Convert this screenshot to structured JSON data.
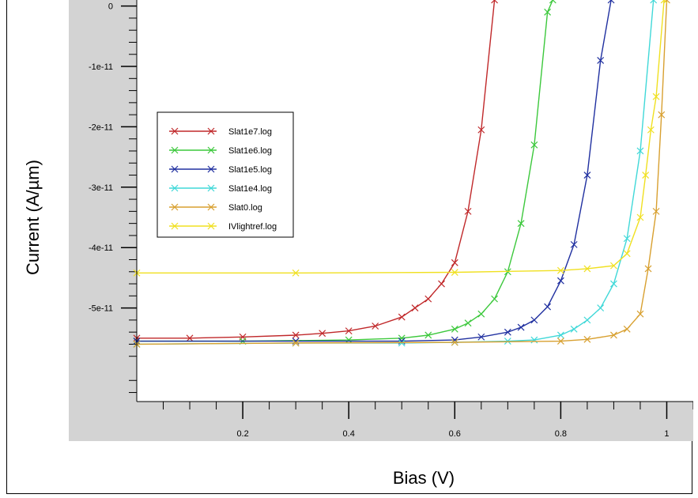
{
  "chart_data": {
    "type": "line",
    "title": "",
    "xlabel": "Bias (V)",
    "ylabel": "Current (A/µm)",
    "xlim": [
      0,
      1.05
    ],
    "ylim": [
      -6.55e-11,
      1e-12
    ],
    "x_ticks": [
      0.2,
      0.4,
      0.6,
      0.8,
      1.0
    ],
    "x_tick_labels": [
      "0.2",
      "0.4",
      "0.6",
      "0.8",
      "1"
    ],
    "y_ticks": [
      0,
      -1e-11,
      -2e-11,
      -3e-11,
      -4e-11,
      -5e-11
    ],
    "y_tick_labels": [
      "0",
      "-1e-11",
      "-2e-11",
      "-3e-11",
      "-4e-11",
      "-5e-11"
    ],
    "legend_position": "upper-left",
    "grid": false,
    "series": [
      {
        "name": "Slat1e7.log",
        "color": "#c0282a",
        "marker": "x",
        "x": [
          0.0,
          0.1,
          0.2,
          0.3,
          0.35,
          0.4,
          0.45,
          0.5,
          0.525,
          0.55,
          0.575,
          0.6,
          0.625,
          0.65,
          0.675
        ],
        "y": [
          -5.5e-11,
          -5.5e-11,
          -5.48e-11,
          -5.45e-11,
          -5.42e-11,
          -5.38e-11,
          -5.3e-11,
          -5.15e-11,
          -5e-11,
          -4.85e-11,
          -4.6e-11,
          -4.25e-11,
          -3.4e-11,
          -2.05e-11,
          1e-12
        ]
      },
      {
        "name": "Slat1e6.log",
        "color": "#3cc83c",
        "marker": "x",
        "x": [
          0.0,
          0.2,
          0.4,
          0.5,
          0.55,
          0.6,
          0.625,
          0.65,
          0.675,
          0.7,
          0.725,
          0.75,
          0.775,
          0.785
        ],
        "y": [
          -5.55e-11,
          -5.55e-11,
          -5.53e-11,
          -5.5e-11,
          -5.45e-11,
          -5.35e-11,
          -5.25e-11,
          -5.1e-11,
          -4.85e-11,
          -4.4e-11,
          -3.6e-11,
          -2.3e-11,
          -1e-12,
          1e-12
        ]
      },
      {
        "name": "Slat1e5.log",
        "color": "#2030a0",
        "marker": "x",
        "x": [
          0.0,
          0.3,
          0.5,
          0.6,
          0.65,
          0.7,
          0.725,
          0.75,
          0.775,
          0.8,
          0.825,
          0.85,
          0.875,
          0.895
        ],
        "y": [
          -5.55e-11,
          -5.55e-11,
          -5.55e-11,
          -5.53e-11,
          -5.48e-11,
          -5.4e-11,
          -5.32e-11,
          -5.2e-11,
          -4.98e-11,
          -4.55e-11,
          -3.95e-11,
          -2.8e-11,
          -9e-12,
          1e-12
        ]
      },
      {
        "name": "Slat1e4.log",
        "color": "#40d8d8",
        "marker": "x",
        "x": [
          0.0,
          0.3,
          0.5,
          0.6,
          0.7,
          0.75,
          0.8,
          0.825,
          0.85,
          0.875,
          0.9,
          0.925,
          0.95,
          0.975
        ],
        "y": [
          -5.6e-11,
          -5.58e-11,
          -5.58e-11,
          -5.57e-11,
          -5.55e-11,
          -5.53e-11,
          -5.45e-11,
          -5.35e-11,
          -5.2e-11,
          -5e-11,
          -4.6e-11,
          -3.85e-11,
          -2.4e-11,
          1e-12
        ]
      },
      {
        "name": "Slat0.log",
        "color": "#d8a030",
        "marker": "x",
        "x": [
          0.0,
          0.3,
          0.6,
          0.8,
          0.85,
          0.9,
          0.925,
          0.95,
          0.965,
          0.98,
          0.99,
          1.0
        ],
        "y": [
          -5.6e-11,
          -5.58e-11,
          -5.57e-11,
          -5.55e-11,
          -5.52e-11,
          -5.45e-11,
          -5.35e-11,
          -5.1e-11,
          -4.35e-11,
          -3.4e-11,
          -1.8e-11,
          1e-12
        ]
      },
      {
        "name": "IVlightref.log",
        "color": "#f0e020",
        "marker": "x",
        "x": [
          0.0,
          0.3,
          0.6,
          0.8,
          0.85,
          0.9,
          0.925,
          0.95,
          0.96,
          0.97,
          0.98,
          0.995
        ],
        "y": [
          -4.42e-11,
          -4.42e-11,
          -4.41e-11,
          -4.38e-11,
          -4.35e-11,
          -4.3e-11,
          -4.1e-11,
          -3.5e-11,
          -2.8e-11,
          -2.05e-11,
          -1.5e-11,
          1e-12
        ]
      }
    ]
  }
}
